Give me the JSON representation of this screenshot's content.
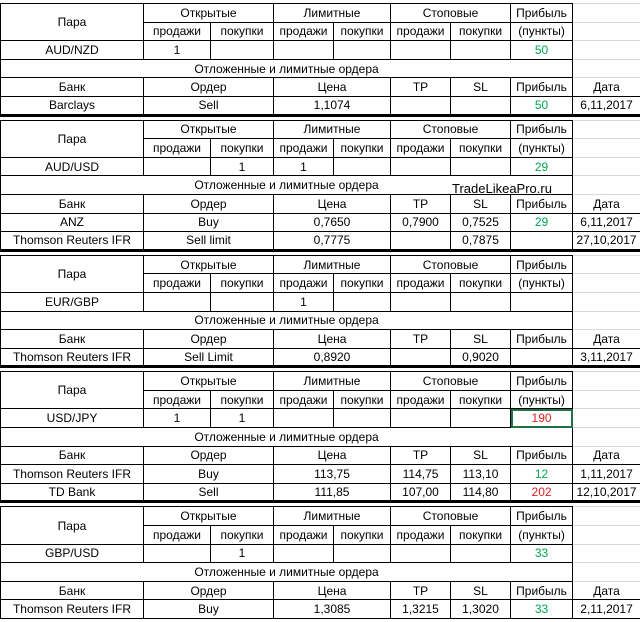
{
  "headers": {
    "pair": "Пара",
    "open": "Открытые",
    "limit": "Лимитные",
    "stop": "Стоповые",
    "profit": "Прибыль",
    "sell": "продажи",
    "buy": "покупки",
    "points": "(пункты)",
    "orders_title": "Отложенные и лимитные ордера",
    "bank": "Банк",
    "order": "Ордер",
    "price": "Цена",
    "tp": "TP",
    "sl": "SL",
    "date": "Дата"
  },
  "watermark": "TradeLikeaPro.ru",
  "blocks": [
    {
      "pair": "AUD/NZD",
      "open_sell": 1,
      "profit": 50,
      "profit_color": "#00a650",
      "orders": [
        {
          "bank": "Barclays",
          "order": "Sell",
          "price": "1,1074",
          "profit": 50,
          "profit_color": "#00a650",
          "date": "6,11,2017"
        }
      ]
    },
    {
      "pair": "AUD/USD",
      "open_buy": 1,
      "limit_sell": 1,
      "profit": 29,
      "profit_color": "#00a650",
      "orders": [
        {
          "bank": "ANZ",
          "order": "Buy",
          "price": "0,7650",
          "tp": "0,7900",
          "sl": "0,7525",
          "profit": 29,
          "profit_color": "#00a650",
          "date": "6,11,2017"
        },
        {
          "bank": "Thomson Reuters IFR",
          "order": "Sell limit",
          "price": "0,7775",
          "sl": "0,7875",
          "date": "27,10,2017"
        }
      ]
    },
    {
      "pair": "EUR/GBP",
      "limit_sell": 1,
      "orders": [
        {
          "bank": "Thomson Reuters IFR",
          "order": "Sell Limit",
          "price": "0,8920",
          "sl": "0,9020",
          "date": "3,11,2017"
        }
      ]
    },
    {
      "pair": "USD/JPY",
      "open_sell": 1,
      "open_buy": 1,
      "profit": 190,
      "profit_color": "#e02020",
      "selected": true,
      "orders": [
        {
          "bank": "Thomson Reuters IFR",
          "order": "Buy",
          "price": "113,75",
          "tp": "114,75",
          "sl": "113,10",
          "profit": 12,
          "profit_color": "#00a650",
          "date": "1,11,2017"
        },
        {
          "bank": "TD Bank",
          "order": "Sell",
          "price": "111,85",
          "tp": "107,00",
          "sl": "114,80",
          "profit": 202,
          "profit_color": "#e02020",
          "date": "12,10,2017"
        }
      ]
    },
    {
      "pair": "GBP/USD",
      "open_buy": 1,
      "profit": 33,
      "profit_color": "#00a650",
      "orders": [
        {
          "bank": "Thomson Reuters IFR",
          "order": "Buy",
          "price": "1,3085",
          "tp": "1,3215",
          "sl": "1,3020",
          "profit": 33,
          "profit_color": "#00a650",
          "date": "2,11,2017"
        }
      ]
    }
  ]
}
